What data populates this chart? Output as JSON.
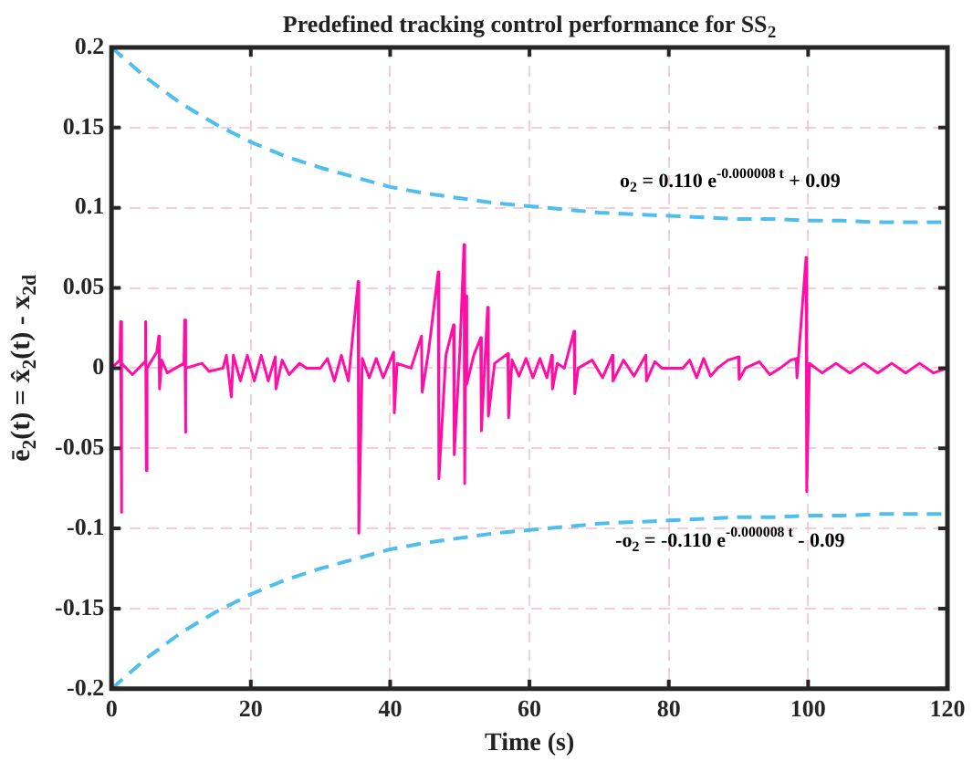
{
  "chart_data": {
    "type": "line",
    "title": "Predefined tracking control performance for SS$_{2}$",
    "xlabel": "Time (s)",
    "ylabel": "ē$_{2}$(t) = x̂$_{2}$(t) - x$_{2d}$",
    "xlim": [
      0,
      120
    ],
    "xticks": [
      0,
      20,
      40,
      60,
      80,
      100,
      120
    ],
    "ylim": [
      -0.2,
      0.2
    ],
    "yticks": [
      -0.2,
      -0.15,
      -0.1,
      -0.05,
      0,
      0.05,
      0.1,
      0.15,
      0.2
    ],
    "grid": true,
    "legend": false,
    "marker": "none",
    "series": [
      {
        "color": "#ff0fa5",
        "line_style": "solid",
        "x": [
          0,
          1.2,
          1.3,
          1.4,
          1.5,
          3,
          4.8,
          4.9,
          5.0,
          5.1,
          6.5,
          6.8,
          6.9,
          7.2,
          8,
          10.4,
          10.5,
          10.6,
          10.7,
          13,
          14,
          16,
          16.5,
          17.2,
          17.5,
          18.5,
          19.5,
          20.5,
          21.5,
          22.5,
          23.5,
          23.6,
          24.5,
          25.5,
          27,
          28,
          30,
          31,
          32,
          33,
          34,
          35.4,
          35.5,
          36,
          37,
          38,
          39,
          40.5,
          40.6,
          41,
          43,
          44.5,
          44.6,
          45.5,
          46.9,
          47.0,
          48,
          49.1,
          49.2,
          50.0,
          50.6,
          50.7,
          50.9,
          51.0,
          52,
          53,
          53.1,
          54,
          54.1,
          55,
          56.9,
          57,
          57.5,
          58.5,
          59.5,
          60.5,
          61.5,
          62.5,
          63.2,
          63.3,
          64,
          65,
          66.4,
          66.5,
          67,
          69,
          70.5,
          71.9,
          72,
          73.5,
          75,
          76.7,
          76.8,
          78,
          79,
          82,
          83,
          84,
          85,
          86,
          87,
          88.5,
          90,
          90.1,
          91,
          93,
          94.5,
          96,
          97.5,
          98.3,
          98.4,
          99.7,
          99.8,
          100.2,
          102,
          104,
          106,
          108,
          110,
          112,
          114,
          116,
          118,
          120
        ],
        "values": [
          0,
          0.005,
          0.029,
          -0.09,
          0.003,
          -0.004,
          0.004,
          0.029,
          -0.064,
          0,
          0.01,
          0.02,
          -0.013,
          0.005,
          -0.003,
          0.003,
          0.03,
          -0.04,
          0,
          0.003,
          -0.002,
          0,
          0.008,
          -0.018,
          0.008,
          -0.008,
          0.008,
          -0.008,
          0.008,
          -0.008,
          0.007,
          -0.013,
          0.005,
          -0.004,
          0.003,
          0,
          0,
          0.006,
          -0.008,
          0.008,
          -0.008,
          0.054,
          -0.103,
          0.006,
          -0.006,
          0.006,
          -0.006,
          0.01,
          -0.028,
          0.003,
          0,
          0.02,
          -0.015,
          0.01,
          0.06,
          -0.069,
          0.008,
          0.027,
          -0.054,
          0.01,
          0.077,
          -0.072,
          0.045,
          -0.01,
          0.008,
          0.019,
          -0.039,
          0.038,
          -0.03,
          0.003,
          0.009,
          -0.031,
          0.005,
          -0.005,
          0.006,
          -0.006,
          0.006,
          -0.006,
          0.008,
          -0.013,
          0.003,
          0,
          0.023,
          -0.016,
          0,
          0.005,
          -0.006,
          0.008,
          -0.008,
          0.005,
          -0.005,
          0.008,
          -0.008,
          0.004,
          0,
          0,
          0.005,
          -0.006,
          0.006,
          -0.005,
          0,
          0.005,
          0.007,
          -0.007,
          0,
          0.004,
          -0.004,
          0,
          0.005,
          0.006,
          -0.006,
          0.069,
          -0.077,
          0.003,
          -0.003,
          0.003,
          -0.003,
          0.003,
          -0.003,
          0.003,
          -0.003,
          0.003,
          -0.003,
          0
        ]
      },
      {
        "color": "#4dbeee",
        "line_style": "dashed",
        "x": [
          0,
          5,
          10,
          15,
          20,
          25,
          30,
          35,
          40,
          45,
          50,
          55,
          60,
          65,
          70,
          75,
          80,
          85,
          90,
          95,
          100,
          105,
          110,
          115,
          120
        ],
        "values": [
          0.2,
          0.181,
          0.165,
          0.152,
          0.141,
          0.132,
          0.125,
          0.119,
          0.113,
          0.109,
          0.106,
          0.103,
          0.101,
          0.099,
          0.097,
          0.096,
          0.095,
          0.094,
          0.093,
          0.093,
          0.092,
          0.092,
          0.091,
          0.091,
          0.091
        ]
      },
      {
        "color": "#4dbeee",
        "line_style": "dashed",
        "x": [
          0,
          5,
          10,
          15,
          20,
          25,
          30,
          35,
          40,
          45,
          50,
          55,
          60,
          65,
          70,
          75,
          80,
          85,
          90,
          95,
          100,
          105,
          110,
          115,
          120
        ],
        "values": [
          -0.2,
          -0.181,
          -0.165,
          -0.152,
          -0.141,
          -0.132,
          -0.125,
          -0.119,
          -0.113,
          -0.109,
          -0.106,
          -0.103,
          -0.101,
          -0.099,
          -0.097,
          -0.096,
          -0.095,
          -0.094,
          -0.093,
          -0.093,
          -0.092,
          -0.092,
          -0.091,
          -0.091,
          -0.091
        ]
      }
    ],
    "annotations": [
      "o$_{2}$ = 0.110 e$^{-0.000008 t}$ + 0.09",
      "-o$_{2}$ = -0.110 e$^{-0.000008 t}$ - 0.09"
    ]
  }
}
